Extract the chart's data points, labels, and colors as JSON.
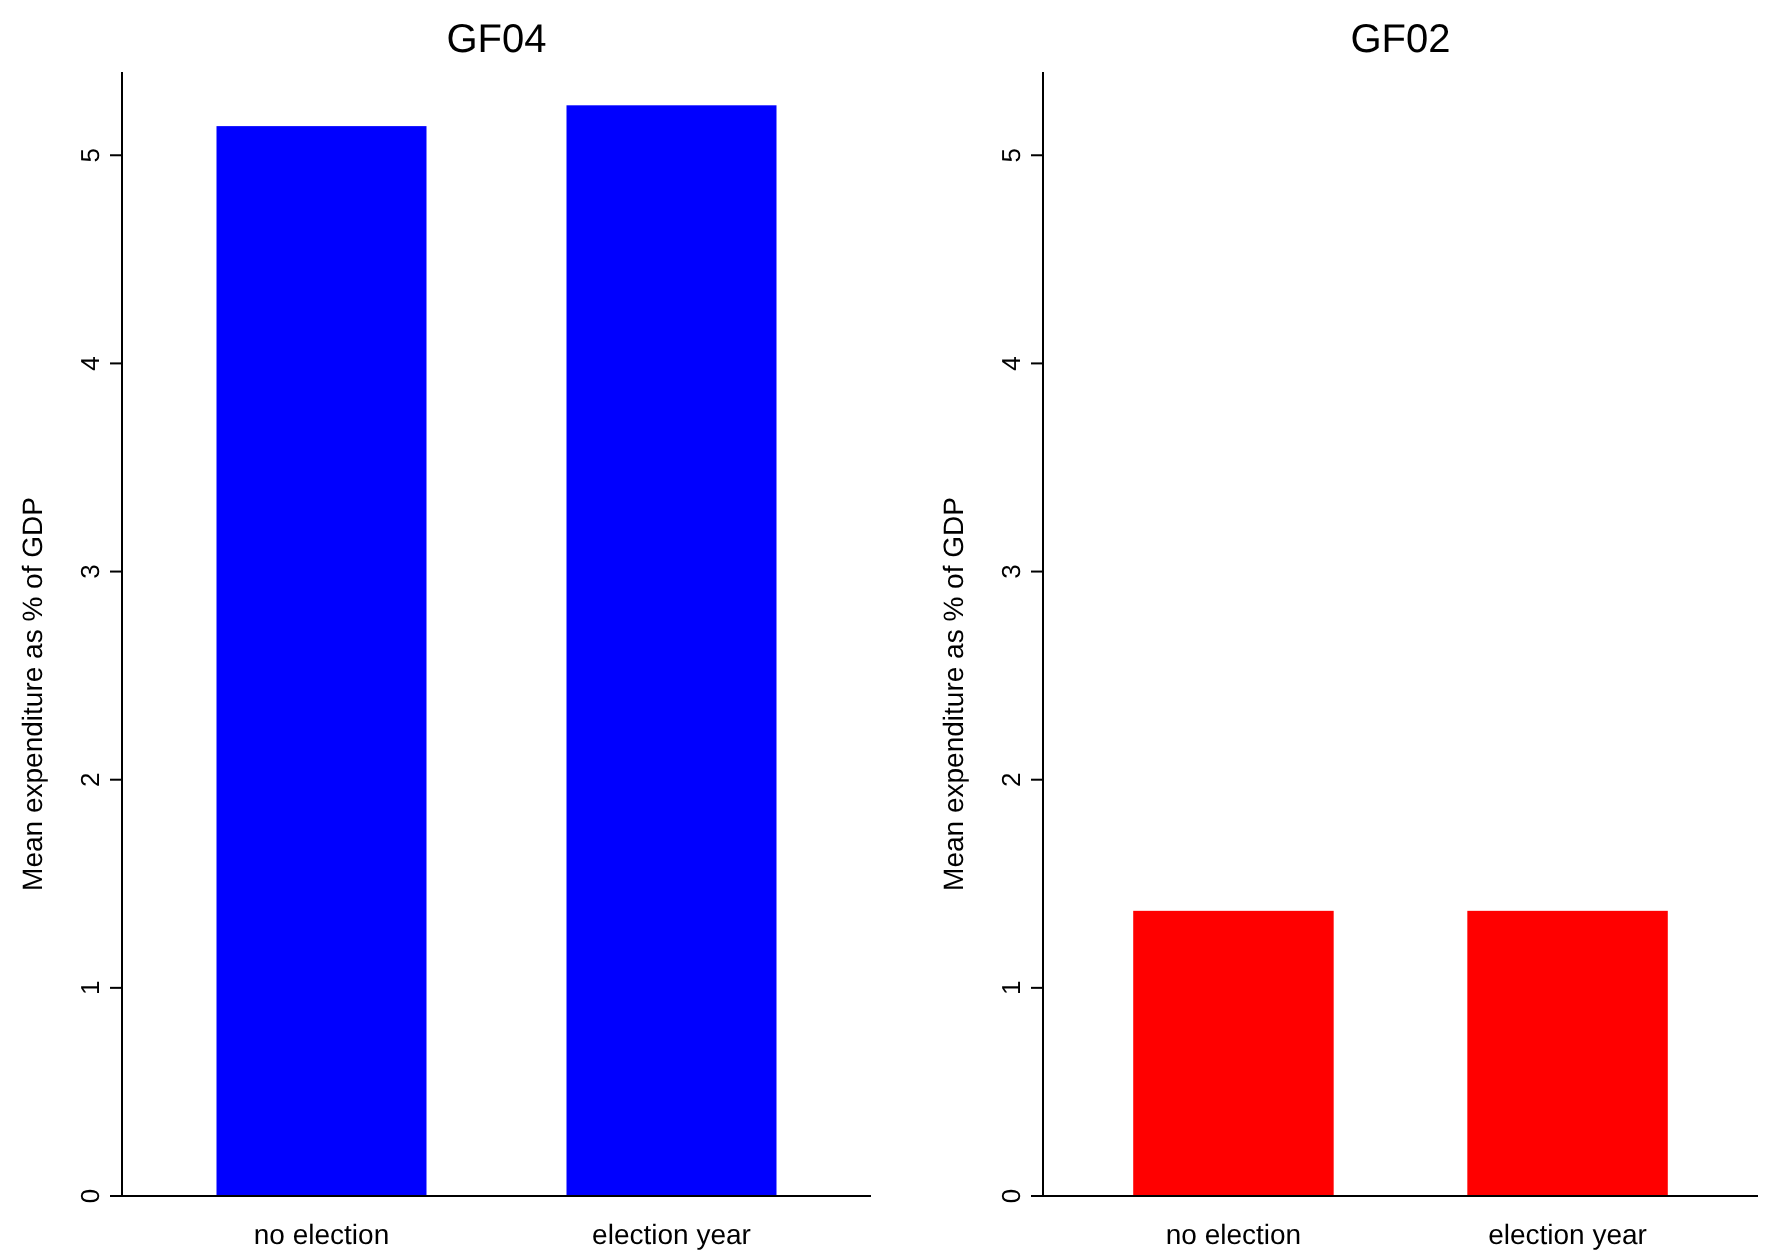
{
  "chart_data": [
    {
      "type": "bar",
      "title": "GF04",
      "ylabel": "Mean expenditure as % of GDP",
      "categories": [
        "no election",
        "election year"
      ],
      "values": [
        5.14,
        5.24
      ],
      "color": "#0000ff",
      "ylim": [
        0,
        5.4
      ],
      "yticks": [
        0,
        1,
        2,
        3,
        4,
        5
      ]
    },
    {
      "type": "bar",
      "title": "GF02",
      "ylabel": "Mean expenditure as % of GDP",
      "categories": [
        "no election",
        "election year"
      ],
      "values": [
        1.37,
        1.37
      ],
      "color": "#ff0000",
      "ylim": [
        0,
        5.4
      ],
      "yticks": [
        0,
        1,
        2,
        3,
        4,
        5
      ]
    }
  ]
}
